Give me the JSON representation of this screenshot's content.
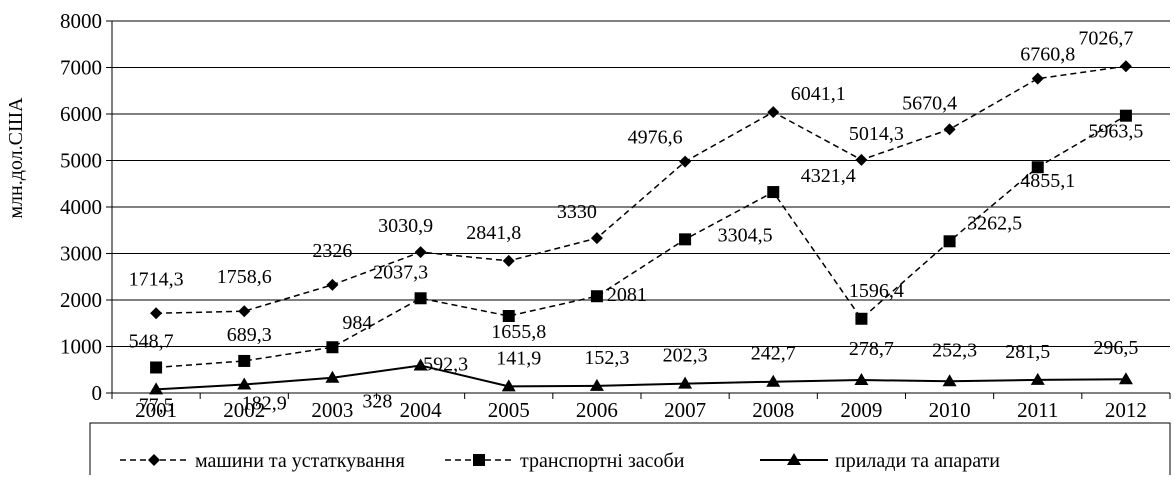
{
  "chart_data": {
    "type": "line",
    "ylabel": "млн.дол.США",
    "xlabel": "",
    "categories": [
      "2001",
      "2002",
      "2003",
      "2004",
      "2005",
      "2006",
      "2007",
      "2008",
      "2009",
      "2010",
      "2011",
      "2012"
    ],
    "ylim": [
      0,
      8000
    ],
    "yticks": [
      "0",
      "1000",
      "2000",
      "3000",
      "4000",
      "5000",
      "6000",
      "7000",
      "8000"
    ],
    "grid": "horizontal",
    "legend_position": "bottom",
    "series": [
      {
        "name": "машини та устаткування",
        "marker": "diamond",
        "line_style": "dashed",
        "values": [
          1714.3,
          1758.6,
          2326,
          3030.9,
          2841.8,
          3330,
          4976.6,
          6041.1,
          5014.3,
          5670.4,
          6760.8,
          7026.7
        ],
        "labels": [
          "1714,3",
          "1758,6",
          "2326",
          "3030,9",
          "2841,8",
          "3330",
          "4976,6",
          "6041,1",
          "5014,3",
          "5670,4",
          "6760,8",
          "7026,7"
        ]
      },
      {
        "name": "транспортні засоби",
        "marker": "square",
        "line_style": "dashed",
        "values": [
          548.7,
          689.3,
          984,
          2037.3,
          1655.8,
          2081,
          3304.5,
          4321.4,
          1596.4,
          3262.5,
          4855.1,
          5963.5
        ],
        "labels": [
          "548,7",
          "689,3",
          "984",
          "2037,3",
          "1655,8",
          "2081",
          "3304,5",
          "4321,4",
          "1596,4",
          "3262,5",
          "4855,1",
          "5963,5"
        ]
      },
      {
        "name": "прилади та апарати",
        "marker": "triangle",
        "line_style": "solid",
        "values": [
          77.5,
          182.9,
          328,
          592.3,
          141.9,
          152.3,
          202.3,
          242.7,
          278.7,
          252.3,
          281.5,
          296.5
        ],
        "labels": [
          "77,5",
          "182,9",
          "328",
          "592,3",
          "141,9",
          "152,3",
          "202,3",
          "242,7",
          "278,7",
          "252,3",
          "281,5",
          "296,5"
        ]
      }
    ]
  }
}
